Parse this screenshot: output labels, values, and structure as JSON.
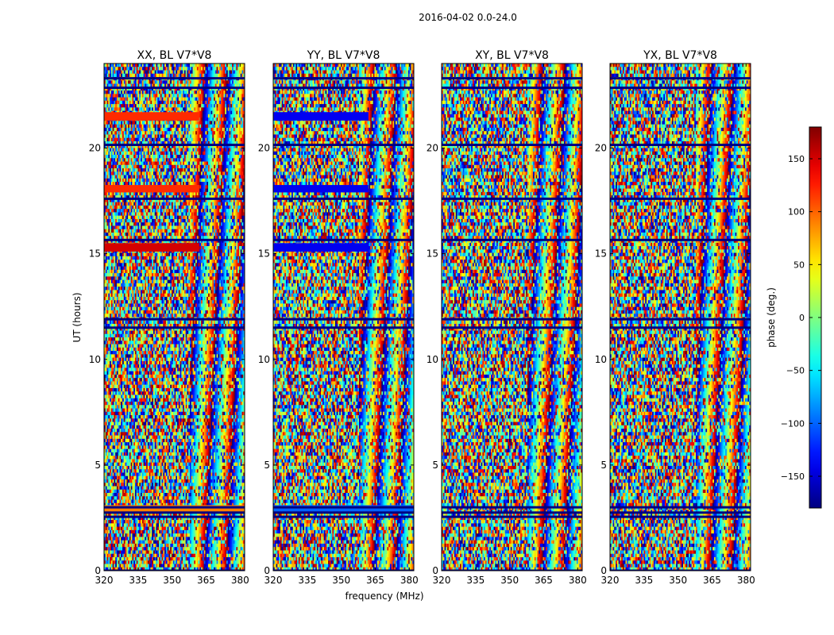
{
  "figure": {
    "suptitle": "2016-04-02 0.0-24.0"
  },
  "chart_data": {
    "type": "heatmap",
    "xlabel": "frequency (MHz)",
    "ylabel": "UT (hours)",
    "x_range": [
      320,
      382
    ],
    "y_range": [
      0,
      24
    ],
    "x_ticks": [
      320,
      335,
      350,
      365,
      380
    ],
    "y_ticks": [
      0,
      5,
      10,
      15,
      20
    ],
    "value_range": [
      -180,
      180
    ],
    "colormap": "jet",
    "panels": [
      {
        "title": "XX, BL V7*V8",
        "polarization": "XX"
      },
      {
        "title": "YY, BL V7*V8",
        "polarization": "YY"
      },
      {
        "title": "XY, BL V7*V8",
        "polarization": "XY"
      },
      {
        "title": "YX, BL V7*V8",
        "polarization": "YX"
      }
    ],
    "colorbar": {
      "label": "phase (deg.)",
      "range": [
        -180,
        180
      ],
      "ticks": [
        150,
        100,
        50,
        0,
        -50,
        -100,
        -150
      ],
      "tick_labels": [
        "150",
        "100",
        "50",
        "0",
        "−50",
        "−100",
        "−150"
      ]
    },
    "uniform_bands": [
      {
        "ut": [
          21.3,
          21.7
        ],
        "freq_end": 362,
        "phase": {
          "XX": 120,
          "YY": -140
        }
      },
      {
        "ut": [
          17.9,
          18.25
        ],
        "freq_end": 362,
        "phase": {
          "XX": 120,
          "YY": -140
        }
      },
      {
        "ut": [
          15.1,
          15.5
        ],
        "freq_end": 362,
        "phase": {
          "XX": 150,
          "YY": -140
        }
      },
      {
        "ut": [
          2.8,
          3.1
        ],
        "freq_end": 382,
        "phase": {
          "XX": 90,
          "YY": -100
        }
      }
    ],
    "flagged_ut": [
      0.0,
      23.3,
      22.85,
      20.15,
      17.6,
      15.65,
      11.9,
      11.5,
      3.0,
      2.75,
      2.55
    ]
  }
}
